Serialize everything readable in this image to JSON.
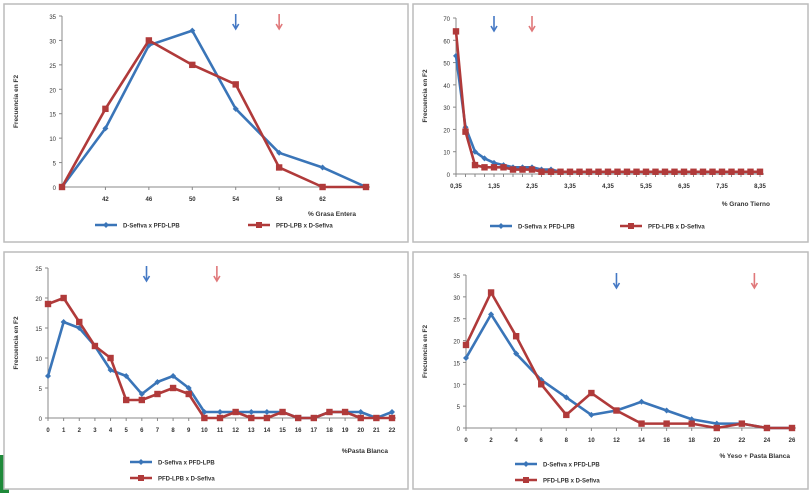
{
  "colors": {
    "blue": "#3a75b8",
    "red": "#b03a3a",
    "frame": "#bcbcbc",
    "green": "#1f8a3a",
    "arrow_blue": "#4478c4",
    "arrow_red": "#e0787a"
  },
  "chart_data": [
    {
      "type": "line",
      "xlabel": "% Grasa Entera",
      "ylabel": "Frecuencia en F2",
      "x": [
        "",
        "42",
        "46",
        "50",
        "54",
        "58",
        "62",
        ""
      ],
      "ylim": [
        0,
        35
      ],
      "yticks": [
        "0",
        "5",
        "10",
        "15",
        "20",
        "25",
        "30",
        "35"
      ],
      "grid": false,
      "legend": "bottom",
      "arrows": {
        "blue": 4,
        "red": 5
      },
      "series": [
        {
          "name": "D-Sefiva x PFD-LPB",
          "color": "blue",
          "values": [
            0,
            12,
            29,
            32,
            16,
            7,
            4,
            0
          ]
        },
        {
          "name": "PFD-LPB x D-Sefiva",
          "color": "red",
          "values": [
            0,
            16,
            30,
            25,
            21,
            4,
            0,
            0
          ]
        }
      ]
    },
    {
      "type": "line",
      "xlabel": "% Grano Tierno",
      "ylabel": "Frecuencia en F2",
      "x": [
        "0,35",
        "",
        "",
        "",
        "1,35",
        "",
        "",
        "",
        "2,35",
        "",
        "",
        "",
        "3,35",
        "",
        "",
        "",
        "4,35",
        "",
        "",
        "",
        "5,35",
        "",
        "",
        "",
        "6,35",
        "",
        "",
        "",
        "7,35",
        "",
        "",
        "",
        "8,35"
      ],
      "ylim": [
        0,
        70
      ],
      "yticks": [
        "0",
        "10",
        "20",
        "30",
        "40",
        "50",
        "60",
        "70"
      ],
      "grid": false,
      "legend": "bottom",
      "arrows": {
        "blue": 4,
        "red": 8
      },
      "series": [
        {
          "name": "D-Sefiva x PFD-LPB",
          "color": "blue",
          "values": [
            53,
            21,
            10,
            7,
            5,
            4,
            3,
            3,
            3,
            2,
            2,
            1,
            1,
            1,
            1,
            1,
            1,
            1,
            1,
            1,
            1,
            1,
            1,
            1,
            1,
            1,
            1,
            1,
            1,
            1,
            1,
            1,
            1
          ]
        },
        {
          "name": "PFD-LPB x D-Sefiva",
          "color": "red",
          "values": [
            64,
            19,
            4,
            3,
            3,
            3,
            2,
            2,
            2,
            1,
            1,
            1,
            1,
            1,
            1,
            1,
            1,
            1,
            1,
            1,
            1,
            1,
            1,
            1,
            1,
            1,
            1,
            1,
            1,
            1,
            1,
            1,
            1
          ]
        }
      ]
    },
    {
      "type": "line",
      "xlabel": "%Pasta Blanca",
      "ylabel": "Frecuencia en F2",
      "x": [
        "0",
        "1",
        "2",
        "3",
        "4",
        "5",
        "6",
        "7",
        "8",
        "9",
        "10",
        "11",
        "12",
        "13",
        "14",
        "15",
        "16",
        "17",
        "18",
        "19",
        "20",
        "21",
        "22"
      ],
      "ylim": [
        0,
        25
      ],
      "yticks": [
        "0",
        "5",
        "10",
        "15",
        "20",
        "25"
      ],
      "grid": false,
      "legend": "bottom",
      "arrows": {
        "blue": 6.3,
        "red": 10.8
      },
      "series": [
        {
          "name": "D-Sefiva x PFD-LPB",
          "color": "blue",
          "values": [
            7,
            16,
            15,
            12,
            8,
            7,
            4,
            6,
            7,
            5,
            1,
            1,
            1,
            1,
            1,
            1,
            0,
            0,
            1,
            1,
            1,
            0,
            1
          ]
        },
        {
          "name": "PFD-LPB x D-Sefiva",
          "color": "red",
          "values": [
            19,
            20,
            16,
            12,
            10,
            3,
            3,
            4,
            5,
            4,
            0,
            0,
            1,
            0,
            0,
            1,
            0,
            0,
            1,
            1,
            0,
            0,
            0
          ]
        }
      ]
    },
    {
      "type": "line",
      "xlabel": "% Yeso + Pasta Blanca",
      "ylabel": "Frecuencia en F2",
      "x": [
        "0",
        "2",
        "4",
        "6",
        "8",
        "10",
        "12",
        "14",
        "16",
        "18",
        "20",
        "22",
        "24",
        "26"
      ],
      "ylim": [
        0,
        35
      ],
      "yticks": [
        "0",
        "5",
        "10",
        "15",
        "20",
        "25",
        "30",
        "35"
      ],
      "grid": false,
      "legend": "bottom",
      "arrows": {
        "blue": 6,
        "red": 11.5
      },
      "series": [
        {
          "name": "D-Sefiva x PFD-LPB",
          "color": "blue",
          "values": [
            16,
            26,
            17,
            11,
            7,
            3,
            4,
            6,
            4,
            2,
            1,
            1,
            0,
            0
          ]
        },
        {
          "name": "PFD-LPB x D-Sefiva",
          "color": "red",
          "values": [
            19,
            31,
            21,
            10,
            3,
            8,
            4,
            1,
            1,
            1,
            0,
            1,
            0,
            0
          ]
        }
      ]
    }
  ]
}
